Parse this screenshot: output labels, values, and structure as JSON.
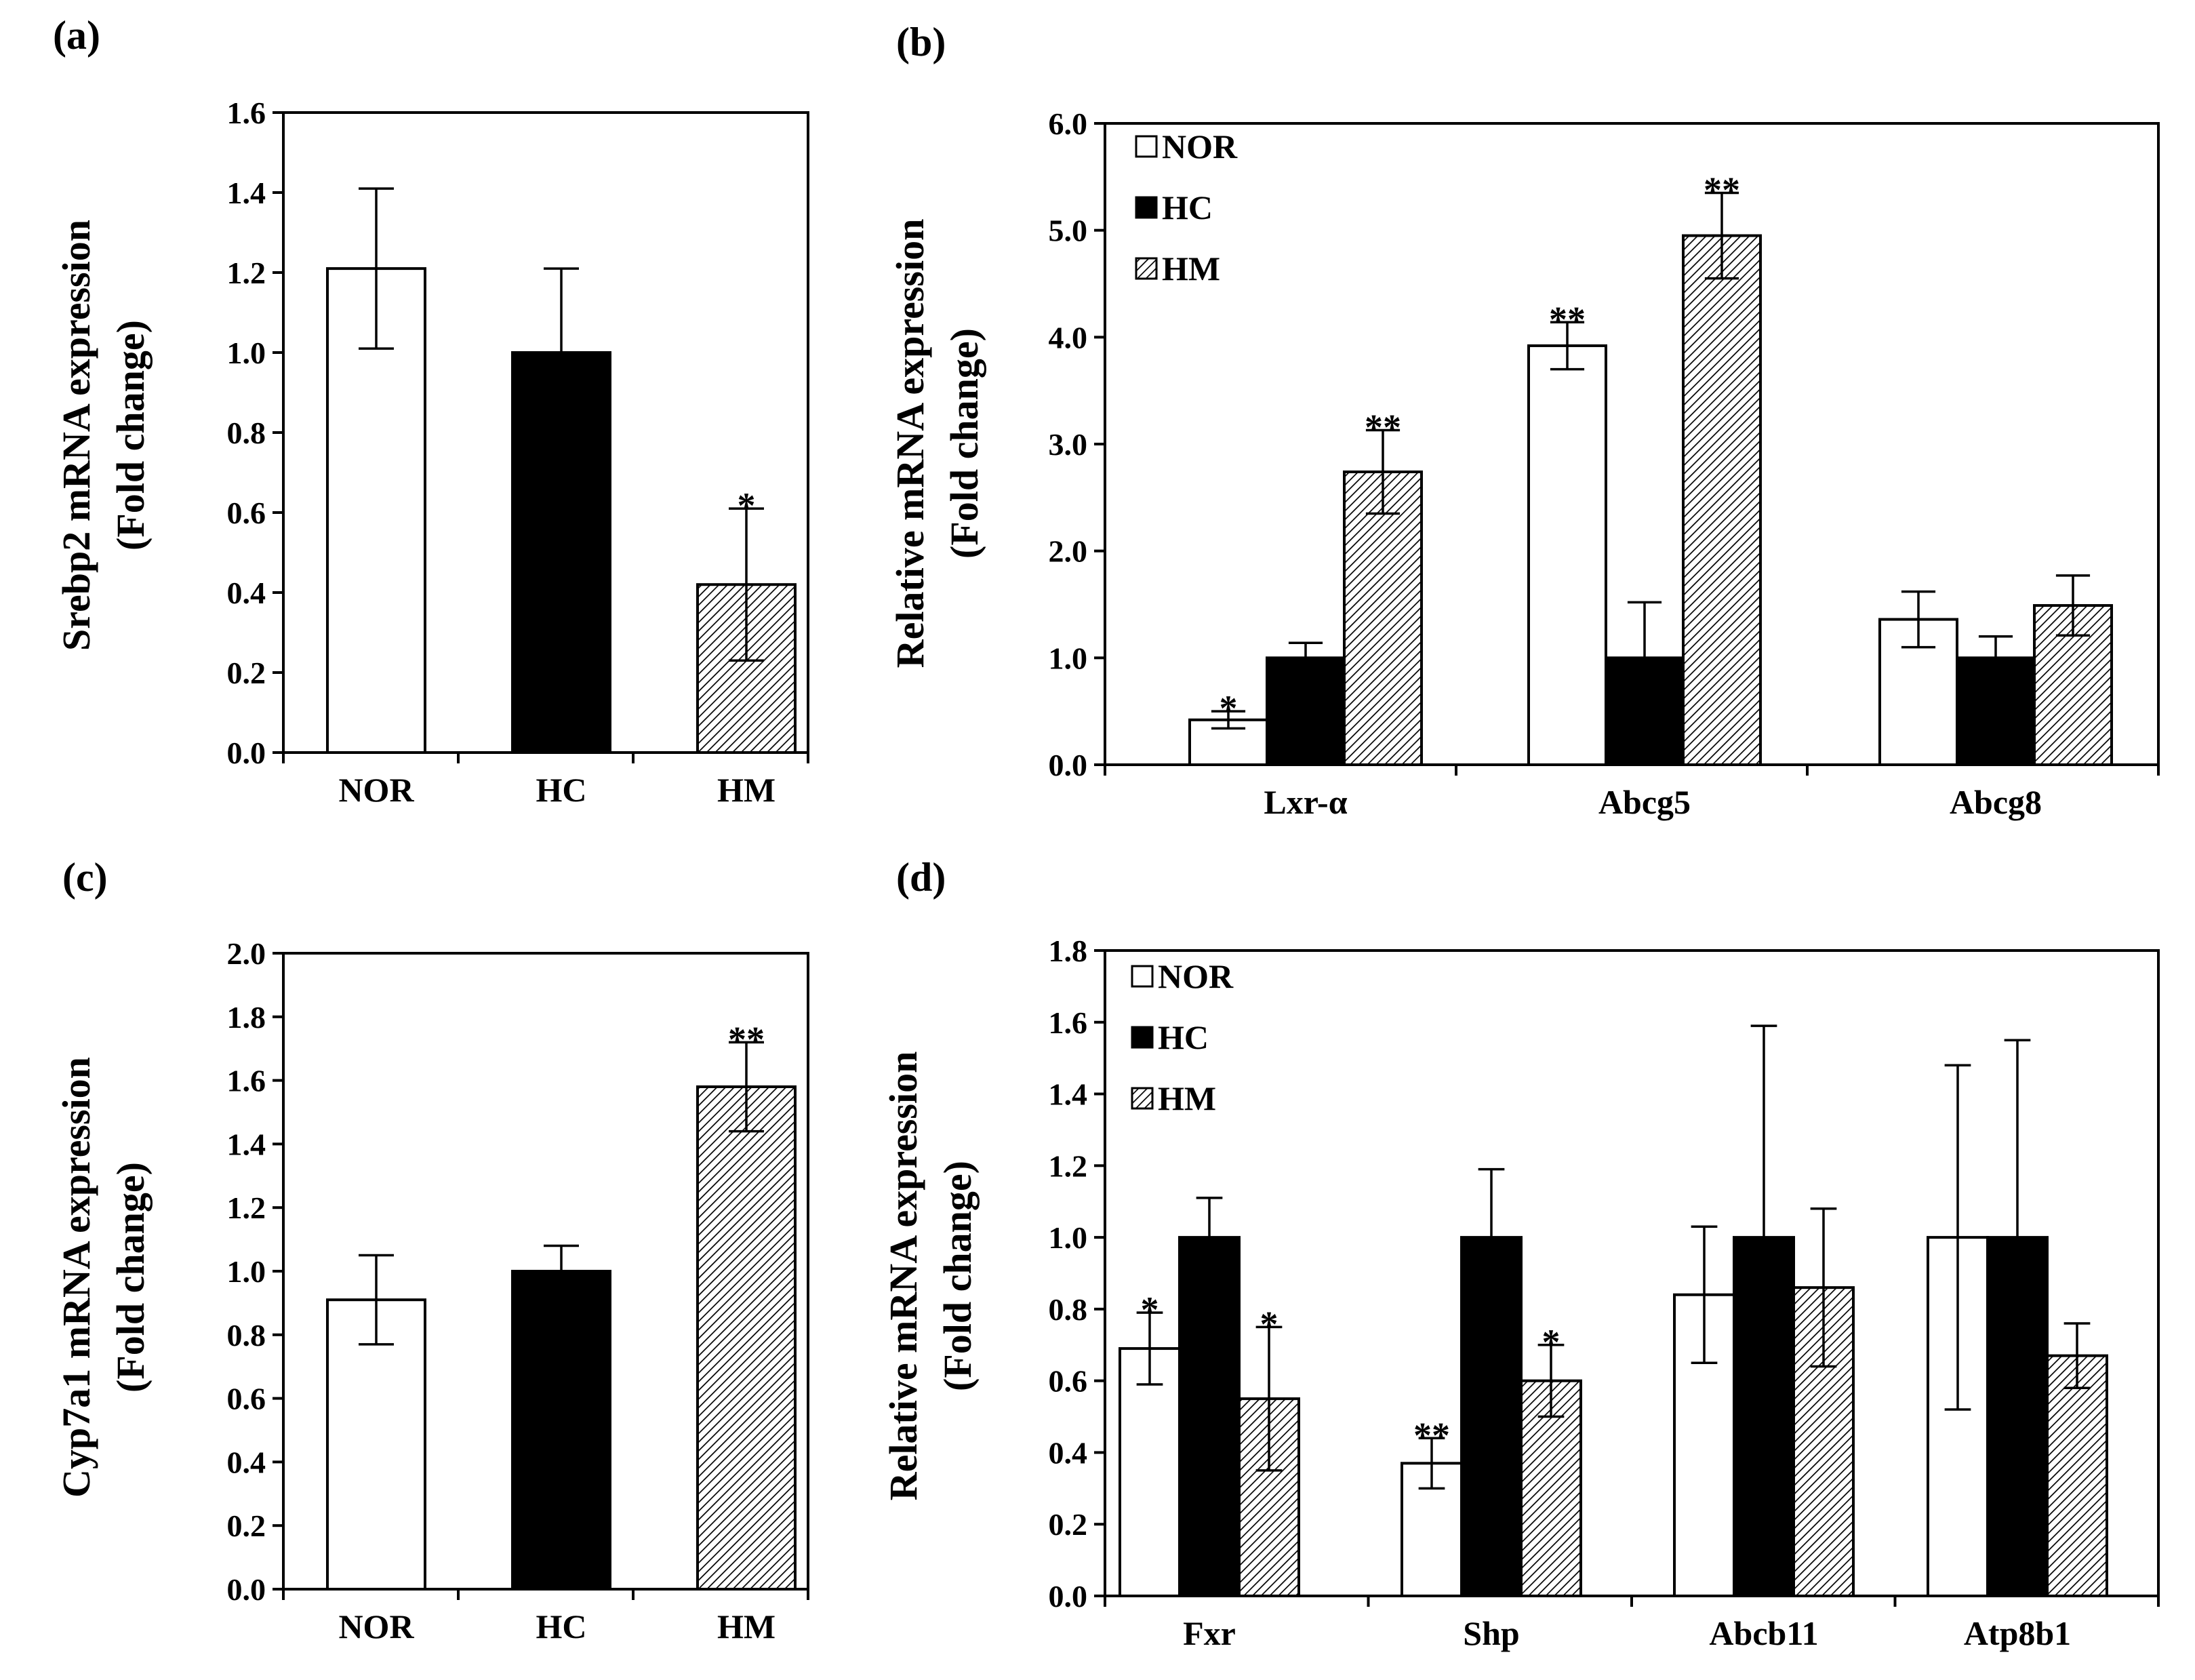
{
  "colors": {
    "nor": "#ffffff",
    "hc": "#000000",
    "hm_hatch": "#000000",
    "axis": "#000000"
  },
  "chart_data": [
    {
      "panel_label": "(a)",
      "type": "bar",
      "ylabel_lines": [
        "Srebp2 mRNA expression",
        "(Fold change)"
      ],
      "ylim": [
        0,
        1.6
      ],
      "yticks": [
        "0.0",
        "0.2",
        "0.4",
        "0.6",
        "0.8",
        "1.0",
        "1.2",
        "1.4",
        "1.6"
      ],
      "categories": [
        "NOR",
        "HC",
        "HM"
      ],
      "series": [
        {
          "name": "Srebp2",
          "values": [
            1.21,
            1.0,
            0.42
          ],
          "errors": [
            0.2,
            0.21,
            0.19
          ],
          "stars": [
            "",
            "",
            "*"
          ],
          "fills": [
            "nor",
            "hc",
            "hm"
          ]
        }
      ],
      "legend": null,
      "grouped": false
    },
    {
      "panel_label": "(b)",
      "type": "bar",
      "ylabel_lines": [
        "Relative mRNA expression",
        "(Fold change)"
      ],
      "ylim": [
        0,
        6.0
      ],
      "yticks": [
        "0.0",
        "1.0",
        "2.0",
        "3.0",
        "4.0",
        "5.0",
        "6.0"
      ],
      "categories": [
        "Lxr-α",
        "Abcg5",
        "Abcg8"
      ],
      "series": [
        {
          "name": "NOR",
          "values": [
            0.42,
            3.92,
            1.36
          ],
          "errors": [
            0.08,
            0.22,
            0.26
          ],
          "stars": [
            "*",
            "**",
            ""
          ]
        },
        {
          "name": "HC",
          "values": [
            1.0,
            1.0,
            1.0
          ],
          "errors": [
            0.14,
            0.52,
            0.2
          ],
          "stars": [
            "",
            "",
            ""
          ]
        },
        {
          "name": "HM",
          "values": [
            2.74,
            4.95,
            1.49
          ],
          "errors": [
            0.39,
            0.4,
            0.28
          ],
          "stars": [
            "**",
            "**",
            ""
          ]
        }
      ],
      "legend": [
        "NOR",
        "HC",
        "HM"
      ],
      "legend_position": "top-left",
      "grouped": true
    },
    {
      "panel_label": "(c)",
      "type": "bar",
      "ylabel_lines": [
        "Cyp7a1 mRNA expression",
        "(Fold change)"
      ],
      "ylim": [
        0,
        2.0
      ],
      "yticks": [
        "0.0",
        "0.2",
        "0.4",
        "0.6",
        "0.8",
        "1.0",
        "1.2",
        "1.4",
        "1.6",
        "1.8",
        "2.0"
      ],
      "categories": [
        "NOR",
        "HC",
        "HM"
      ],
      "series": [
        {
          "name": "Cyp7a1",
          "values": [
            0.91,
            1.0,
            1.58
          ],
          "errors": [
            0.14,
            0.08,
            0.14
          ],
          "stars": [
            "",
            "",
            "**"
          ],
          "fills": [
            "nor",
            "hc",
            "hm"
          ]
        }
      ],
      "legend": null,
      "grouped": false
    },
    {
      "panel_label": "(d)",
      "type": "bar",
      "ylabel_lines": [
        "Relative mRNA expression",
        "(Fold change)"
      ],
      "ylim": [
        0,
        1.8
      ],
      "yticks": [
        "0.0",
        "0.2",
        "0.4",
        "0.6",
        "0.8",
        "1.0",
        "1.2",
        "1.4",
        "1.6",
        "1.8"
      ],
      "categories": [
        "Fxr",
        "Shp",
        "Abcb11",
        "Atp8b1"
      ],
      "series": [
        {
          "name": "NOR",
          "values": [
            0.69,
            0.37,
            0.84,
            1.0
          ],
          "errors": [
            0.1,
            0.07,
            0.19,
            0.48
          ],
          "stars": [
            "*",
            "**",
            "",
            ""
          ]
        },
        {
          "name": "HC",
          "values": [
            1.0,
            1.0,
            1.0,
            1.0
          ],
          "errors": [
            0.11,
            0.19,
            0.59,
            0.55
          ],
          "stars": [
            "",
            "",
            "",
            ""
          ]
        },
        {
          "name": "HM",
          "values": [
            0.55,
            0.6,
            0.86,
            0.67
          ],
          "errors": [
            0.2,
            0.1,
            0.22,
            0.09
          ],
          "stars": [
            "*",
            "*",
            "",
            ""
          ]
        }
      ],
      "legend": [
        "NOR",
        "HC",
        "HM"
      ],
      "legend_position": "top-left",
      "grouped": true
    }
  ]
}
